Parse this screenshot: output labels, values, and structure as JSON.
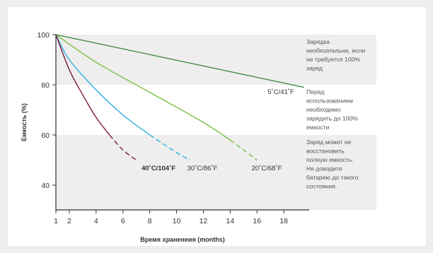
{
  "chart_data": {
    "type": "line",
    "xlabel": "Время храненеия (months)",
    "ylabel": "Емкость (%)",
    "xlim": [
      1,
      20
    ],
    "ylim": [
      35,
      100
    ],
    "x_ticks": [
      1,
      2,
      4,
      6,
      8,
      10,
      12,
      14,
      16,
      18
    ],
    "y_ticks": [
      40,
      60,
      80,
      100
    ],
    "grid": false,
    "bands": [
      {
        "range": [
          80,
          100
        ],
        "text": [
          "Зарядка",
          "необязательна, если",
          "не требуется 100%",
          "заряд"
        ]
      },
      {
        "range": [
          60,
          80
        ],
        "text": [
          "Перед",
          "использованием",
          "необходимо",
          "зарядить до 100%",
          "емкости"
        ]
      },
      {
        "range": [
          35,
          60
        ],
        "text": [
          "Заряд может не",
          "восстановить",
          "полную емкость.",
          "Не доводите",
          "батарею до такого",
          "состояния."
        ]
      }
    ],
    "series": [
      {
        "name": "5˚C/41˚F",
        "color": "#3f8a3c",
        "x": [
          1,
          19.5
        ],
        "y": [
          100,
          79
        ],
        "dashed_from": null
      },
      {
        "name": "20˚C/68˚F",
        "color": "#7bbf42",
        "x": [
          1,
          4,
          8,
          12,
          14,
          16
        ],
        "y": [
          100,
          89,
          77,
          65,
          58,
          50
        ],
        "dashed_from": 14
      },
      {
        "name": "30˚C/86˚F",
        "color": "#2aaee0",
        "x": [
          1,
          2,
          4,
          6,
          8,
          10,
          11
        ],
        "y": [
          100,
          90,
          78,
          68,
          60,
          53,
          50
        ],
        "dashed_from": 8
      },
      {
        "name": "40˚C/104˚F",
        "color": "#7a1a3c",
        "x": [
          1,
          2,
          3,
          4,
          5,
          6,
          7
        ],
        "y": [
          100,
          86,
          76,
          67,
          60,
          54,
          50
        ],
        "dashed_from": 5
      }
    ]
  }
}
